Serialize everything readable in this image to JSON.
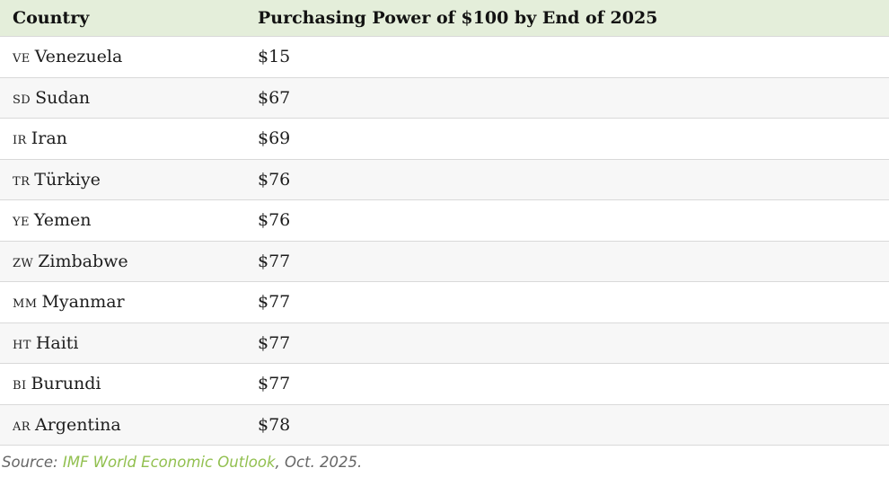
{
  "table": {
    "columns": [
      "Country",
      "Purchasing Power of $100 by End of 2025"
    ],
    "rows": [
      {
        "code": "VE",
        "country": "Venezuela",
        "value": "$15"
      },
      {
        "code": "SD",
        "country": "Sudan",
        "value": "$67"
      },
      {
        "code": "IR",
        "country": "Iran",
        "value": "$69"
      },
      {
        "code": "TR",
        "country": "Türkiye",
        "value": "$76"
      },
      {
        "code": "YE",
        "country": "Yemen",
        "value": "$76"
      },
      {
        "code": "ZW",
        "country": "Zimbabwe",
        "value": "$77"
      },
      {
        "code": "MM",
        "country": "Myanmar",
        "value": "$77"
      },
      {
        "code": "HT",
        "country": "Haiti",
        "value": "$77"
      },
      {
        "code": "BI",
        "country": "Burundi",
        "value": "$77"
      },
      {
        "code": "AR",
        "country": "Argentina",
        "value": "$78"
      }
    ]
  },
  "footer": {
    "prefix": "Source: ",
    "link_label": "IMF World Economic Outlook",
    "suffix": ", Oct. 2025."
  },
  "colors": {
    "header_bg": "#e4eeda",
    "alt_row_bg": "#f7f7f7",
    "border": "#d9d9d9",
    "text": "#1d1d1d",
    "footer_text": "#666666",
    "link_green": "#92c050"
  }
}
